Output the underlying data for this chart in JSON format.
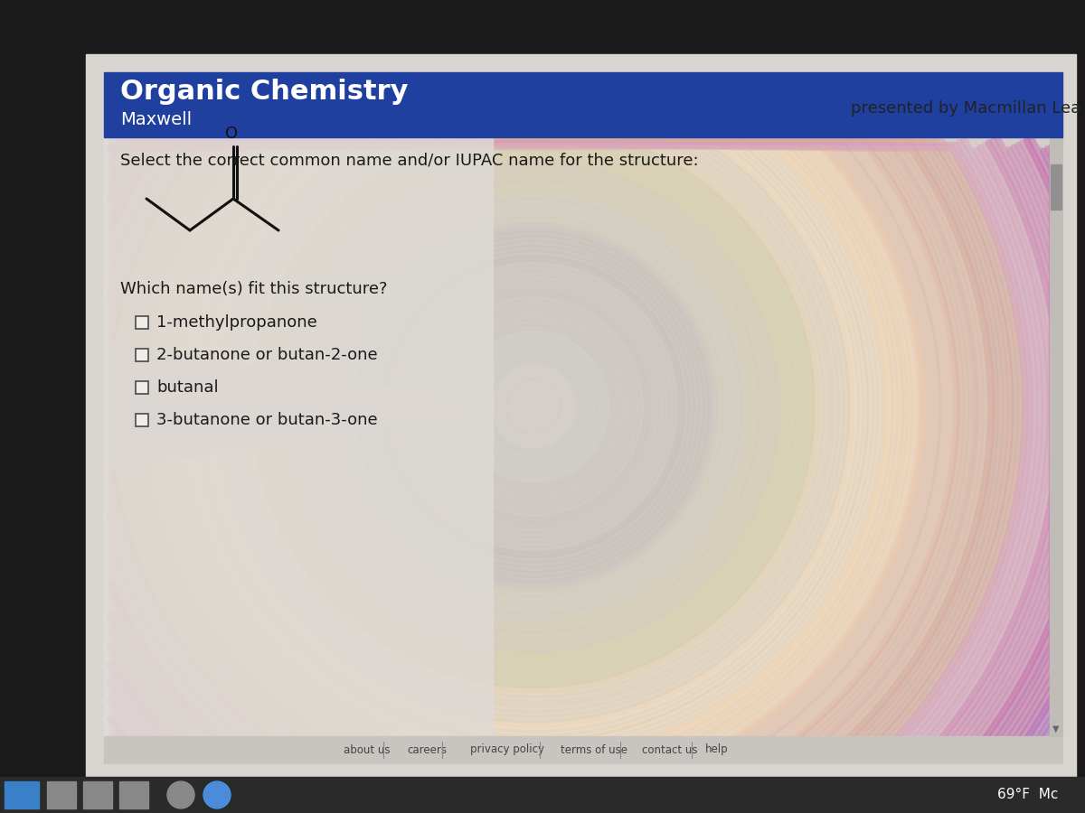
{
  "title": "Organic Chemistry",
  "subtitle": "Maxwell",
  "presented_by": "presented by Macmillan Lea",
  "question": "Select the correct common name and/or IUPAC name for the structure:",
  "sub_question": "Which name(s) fit this structure?",
  "choices": [
    "1-methylpropanone",
    "2-butanone or butan-2-one",
    "butanal",
    "3-butanone or butan-3-one"
  ],
  "header_bg": "#2040a0",
  "header_text_color": "#ffffff",
  "page_bg": "#d8d4d0",
  "content_bg": "#dedad6",
  "footer_bg": "#c8c4c0",
  "footer_links": [
    "about us",
    "careers",
    "privacy policy",
    "terms of use",
    "contact us",
    "help"
  ],
  "taskbar_bg": "#1a1a1a",
  "status_text": "69°F  Mc",
  "bond_color": "#111111",
  "text_color": "#1a1a1a",
  "presented_color": "#222222"
}
